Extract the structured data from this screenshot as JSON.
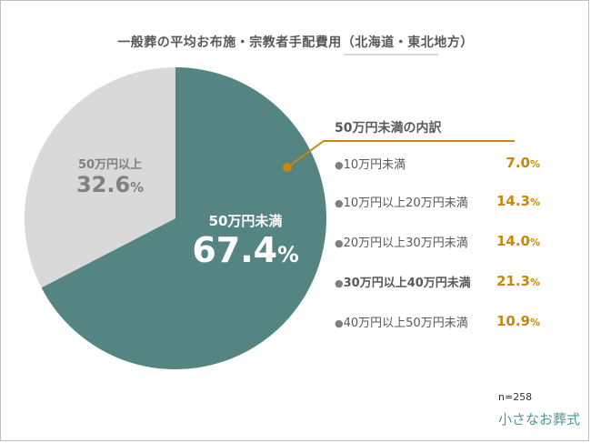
{
  "title": "一般葬の平均お布施・宗教者手配費用（北海道・東北地方）",
  "chart_data": {
    "type": "pie",
    "title": "一般葬の平均お布施・宗教者手配費用（北海道・東北地方）",
    "slices": [
      {
        "name": "50万円未満",
        "value": 67.4,
        "value_label": "67.4",
        "color": "#548583"
      },
      {
        "name": "50万円以上",
        "value": 32.6,
        "value_label": "32.6",
        "color": "#d9d9d9"
      }
    ],
    "breakdown": {
      "title": "50万円未満の内訳",
      "items": [
        {
          "label": "10万円未満",
          "value": 7.0,
          "value_label": "7.0"
        },
        {
          "label": "10万円以上20万円未満",
          "value": 14.3,
          "value_label": "14.3"
        },
        {
          "label": "20万円以上30万円未満",
          "value": 14.0,
          "value_label": "14.0"
        },
        {
          "label": "30万円以上40万円未満",
          "value": 21.3,
          "value_label": "21.3"
        },
        {
          "label": "40万円以上50万円未満",
          "value": 10.9,
          "value_label": "10.9"
        }
      ]
    },
    "n_label": "n=258",
    "unit": "%"
  },
  "logo": "小さなお葬式"
}
